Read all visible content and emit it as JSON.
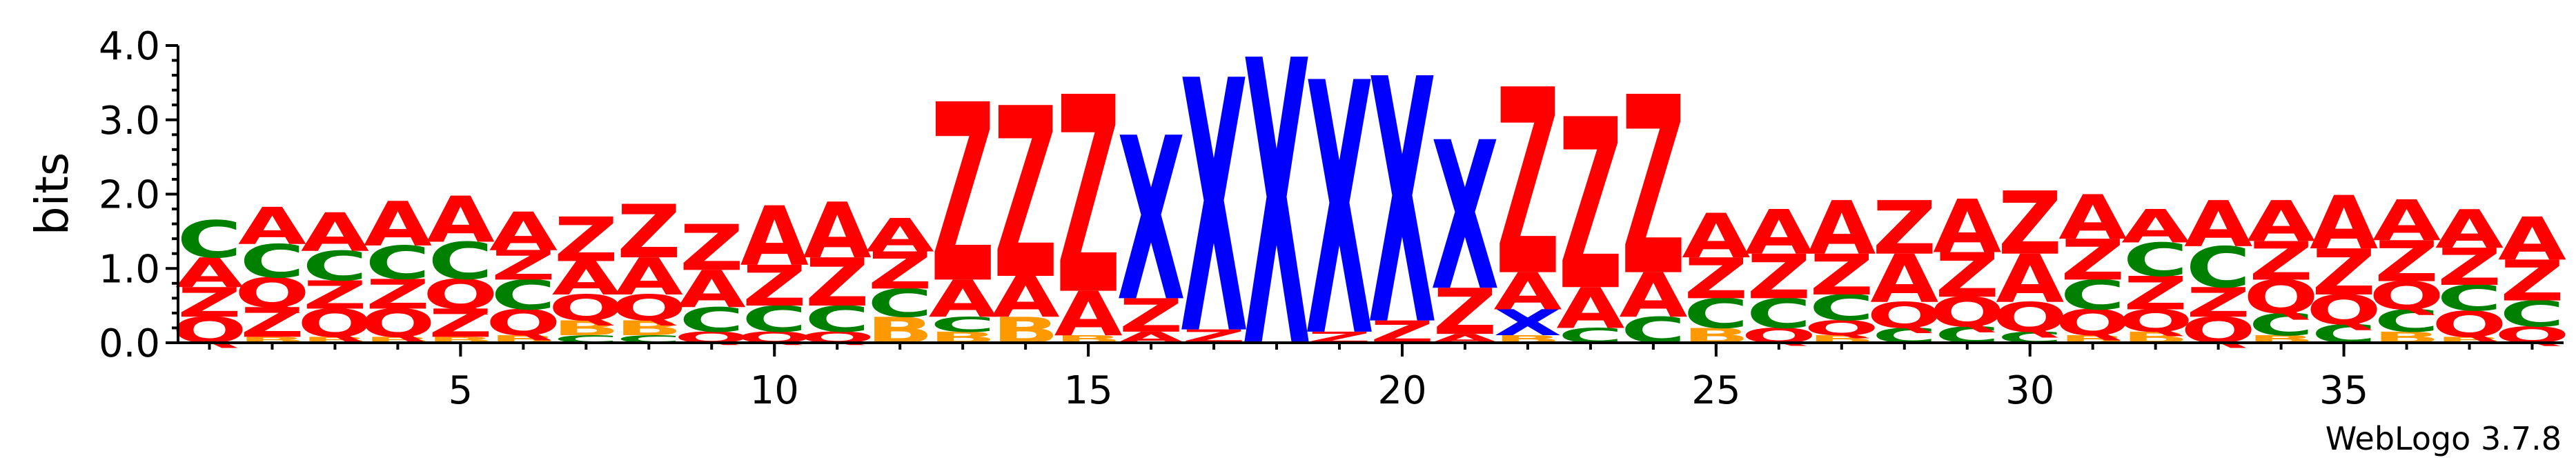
{
  "chart_data": {
    "type": "sequence-logo",
    "ylabel": "bits",
    "ylim": [
      0,
      4.0
    ],
    "yticks": [
      "0.0",
      "1.0",
      "2.0",
      "3.0",
      "4.0"
    ],
    "xlim": [
      0.5,
      38.5
    ],
    "xticks": [
      "5",
      "10",
      "15",
      "20",
      "25",
      "30",
      "35"
    ],
    "xtick_values": [
      5,
      10,
      15,
      20,
      25,
      30,
      35
    ],
    "footer": "WebLogo 3.7.8",
    "colors": {
      "A": "#ff0000",
      "Z": "#ff0000",
      "Q": "#ff0000",
      "C": "#008000",
      "B": "#ff9900",
      "X": "#0000ff",
      "other": "#800080"
    },
    "positions": [
      [
        [
          "Q",
          0.35
        ],
        [
          "Z",
          0.4
        ],
        [
          "A",
          0.4
        ],
        [
          "C",
          0.5
        ]
      ],
      [
        [
          "B",
          0.08
        ],
        [
          "Z",
          0.4
        ],
        [
          "Q",
          0.4
        ],
        [
          "C",
          0.45
        ],
        [
          "A",
          0.5
        ]
      ],
      [
        [
          "B",
          0.08
        ],
        [
          "Q",
          0.38
        ],
        [
          "Z",
          0.38
        ],
        [
          "C",
          0.4
        ],
        [
          "A",
          0.52
        ]
      ],
      [
        [
          "B",
          0.08
        ],
        [
          "Q",
          0.38
        ],
        [
          "Z",
          0.4
        ],
        [
          "C",
          0.45
        ],
        [
          "A",
          0.6
        ]
      ],
      [
        [
          "B",
          0.08
        ],
        [
          "Z",
          0.38
        ],
        [
          "Q",
          0.4
        ],
        [
          "C",
          0.5
        ],
        [
          "A",
          0.62
        ]
      ],
      [
        [
          "B",
          0.1
        ],
        [
          "Q",
          0.35
        ],
        [
          "C",
          0.4
        ],
        [
          "Z",
          0.4
        ],
        [
          "A",
          0.52
        ]
      ],
      [
        [
          "C",
          0.1
        ],
        [
          "B",
          0.2
        ],
        [
          "Q",
          0.35
        ],
        [
          "A",
          0.45
        ],
        [
          "Z",
          0.6
        ]
      ],
      [
        [
          "C",
          0.1
        ],
        [
          "B",
          0.2
        ],
        [
          "Q",
          0.35
        ],
        [
          "A",
          0.5
        ],
        [
          "Z",
          0.72
        ]
      ],
      [
        [
          "Q",
          0.15
        ],
        [
          "C",
          0.33
        ],
        [
          "A",
          0.5
        ],
        [
          "Z",
          0.62
        ]
      ],
      [
        [
          "Q",
          0.15
        ],
        [
          "C",
          0.35
        ],
        [
          "Z",
          0.55
        ],
        [
          "A",
          0.8
        ]
      ],
      [
        [
          "Q",
          0.15
        ],
        [
          "C",
          0.35
        ],
        [
          "Z",
          0.65
        ],
        [
          "A",
          0.75
        ]
      ],
      [
        [
          "B",
          0.35
        ],
        [
          "C",
          0.38
        ],
        [
          "Z",
          0.5
        ],
        [
          "A",
          0.45
        ]
      ],
      [
        [
          "B",
          0.15
        ],
        [
          "C",
          0.2
        ],
        [
          "A",
          0.5
        ],
        [
          "Z",
          2.4
        ]
      ],
      [
        [
          "B",
          0.35
        ],
        [
          "A",
          0.55
        ],
        [
          "Z",
          2.3
        ]
      ],
      [
        [
          "B",
          0.1
        ],
        [
          "A",
          0.6
        ],
        [
          "Z",
          2.65
        ]
      ],
      [
        [
          "A",
          0.15
        ],
        [
          "Z",
          0.45
        ],
        [
          "X",
          2.2
        ]
      ],
      [
        [
          "Z",
          0.18
        ],
        [
          "X",
          3.4
        ]
      ],
      [
        [
          "X",
          3.85
        ]
      ],
      [
        [
          "Z",
          0.15
        ],
        [
          "X",
          3.4
        ]
      ],
      [
        [
          "Z",
          0.3
        ],
        [
          "X",
          3.3
        ]
      ],
      [
        [
          "A",
          0.12
        ],
        [
          "Z",
          0.62
        ],
        [
          "X",
          2.0
        ]
      ],
      [
        [
          "B",
          0.1
        ],
        [
          "X",
          0.35
        ],
        [
          "A",
          0.5
        ],
        [
          "Z",
          2.5
        ]
      ],
      [
        [
          "C",
          0.2
        ],
        [
          "A",
          0.55
        ],
        [
          "Z",
          2.3
        ]
      ],
      [
        [
          "C",
          0.35
        ],
        [
          "A",
          0.6
        ],
        [
          "Z",
          2.4
        ]
      ],
      [
        [
          "B",
          0.2
        ],
        [
          "C",
          0.4
        ],
        [
          "Z",
          0.55
        ],
        [
          "A",
          0.6
        ]
      ],
      [
        [
          "Q",
          0.2
        ],
        [
          "C",
          0.4
        ],
        [
          "Z",
          0.6
        ],
        [
          "A",
          0.6
        ]
      ],
      [
        [
          "B",
          0.1
        ],
        [
          "Q",
          0.2
        ],
        [
          "C",
          0.35
        ],
        [
          "Z",
          0.55
        ],
        [
          "A",
          0.72
        ]
      ],
      [
        [
          "C",
          0.2
        ],
        [
          "Q",
          0.35
        ],
        [
          "A",
          0.65
        ],
        [
          "Z",
          0.72
        ]
      ],
      [
        [
          "C",
          0.22
        ],
        [
          "Q",
          0.4
        ],
        [
          "Z",
          0.6
        ],
        [
          "A",
          0.72
        ]
      ],
      [
        [
          "C",
          0.15
        ],
        [
          "Q",
          0.4
        ],
        [
          "A",
          0.65
        ],
        [
          "Z",
          0.85
        ]
      ],
      [
        [
          "B",
          0.1
        ],
        [
          "Q",
          0.35
        ],
        [
          "C",
          0.4
        ],
        [
          "Z",
          0.55
        ],
        [
          "A",
          0.6
        ]
      ],
      [
        [
          "B",
          0.15
        ],
        [
          "Q",
          0.3
        ],
        [
          "Z",
          0.45
        ],
        [
          "C",
          0.45
        ],
        [
          "A",
          0.45
        ]
      ],
      [
        [
          "Q",
          0.35
        ],
        [
          "Z",
          0.4
        ],
        [
          "C",
          0.55
        ],
        [
          "A",
          0.62
        ]
      ],
      [
        [
          "B",
          0.1
        ],
        [
          "C",
          0.3
        ],
        [
          "Q",
          0.45
        ],
        [
          "Z",
          0.52
        ],
        [
          "A",
          0.55
        ]
      ],
      [
        [
          "C",
          0.25
        ],
        [
          "Q",
          0.4
        ],
        [
          "Z",
          0.62
        ],
        [
          "A",
          0.72
        ]
      ],
      [
        [
          "B",
          0.15
        ],
        [
          "C",
          0.3
        ],
        [
          "Q",
          0.38
        ],
        [
          "Z",
          0.55
        ],
        [
          "A",
          0.55
        ]
      ],
      [
        [
          "B",
          0.08
        ],
        [
          "Q",
          0.35
        ],
        [
          "C",
          0.35
        ],
        [
          "Z",
          0.5
        ],
        [
          "A",
          0.52
        ]
      ],
      [
        [
          "Q",
          0.22
        ],
        [
          "C",
          0.35
        ],
        [
          "Z",
          0.55
        ],
        [
          "A",
          0.58
        ]
      ]
    ]
  }
}
